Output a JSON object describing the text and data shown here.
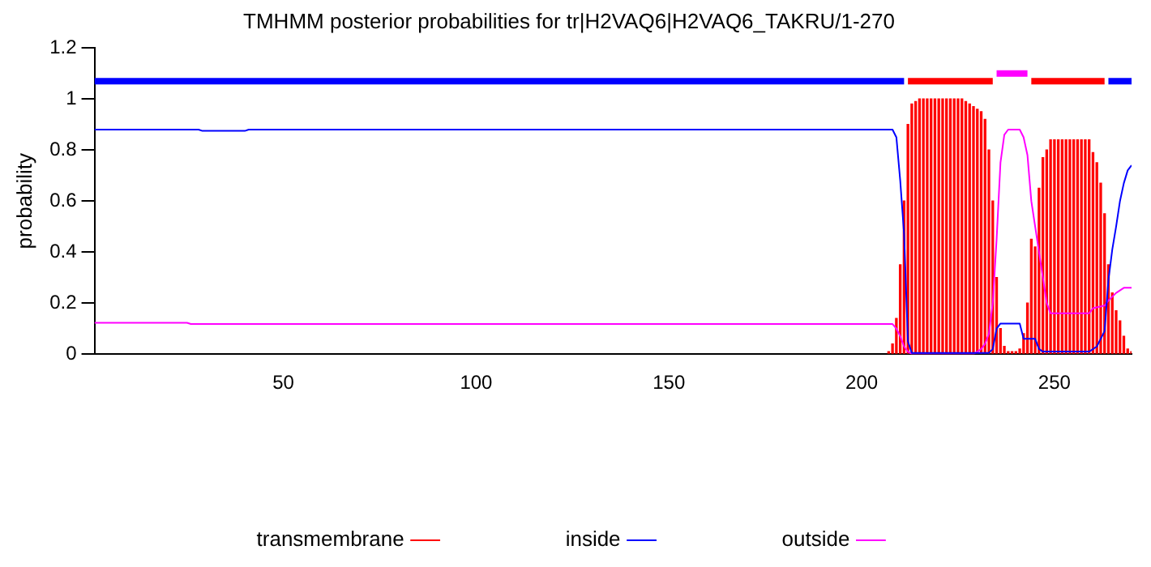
{
  "chart_data": {
    "type": "line",
    "title": "TMHMM posterior probabilities for tr|H2VAQ6|H2VAQ6_TAKRU/1-270",
    "ylabel": "probability",
    "xlim": [
      1,
      270
    ],
    "xticks": [
      50,
      100,
      150,
      200,
      250
    ],
    "ylim": [
      0,
      1.2
    ],
    "yticks": [
      0,
      0.2,
      0.4,
      0.6,
      0.8,
      1,
      1.2
    ],
    "grid": false,
    "legend": "bottom",
    "marker": "none",
    "series": [
      {
        "name": "transmembrane",
        "type": "bar",
        "color": "#ff0000",
        "x": [
          207,
          208,
          209,
          210,
          211,
          212,
          213,
          214,
          215,
          216,
          217,
          218,
          219,
          220,
          221,
          222,
          223,
          224,
          225,
          226,
          227,
          228,
          229,
          230,
          231,
          232,
          233,
          234,
          235,
          236,
          237,
          238,
          239,
          240,
          241,
          242,
          243,
          244,
          245,
          246,
          247,
          248,
          249,
          250,
          251,
          252,
          253,
          254,
          255,
          256,
          257,
          258,
          259,
          260,
          261,
          262,
          263,
          264,
          265,
          266,
          267,
          268,
          269,
          270
        ],
        "values": [
          0.01,
          0.04,
          0.14,
          0.35,
          0.6,
          0.9,
          0.98,
          0.99,
          1,
          1,
          1,
          1,
          1,
          1,
          1,
          1,
          1,
          1,
          1,
          1,
          0.99,
          0.98,
          0.97,
          0.96,
          0.95,
          0.92,
          0.8,
          0.6,
          0.3,
          0.1,
          0.03,
          0.01,
          0.01,
          0.01,
          0.02,
          0.08,
          0.2,
          0.45,
          0.42,
          0.65,
          0.77,
          0.8,
          0.84,
          0.84,
          0.84,
          0.84,
          0.84,
          0.84,
          0.84,
          0.84,
          0.84,
          0.84,
          0.84,
          0.79,
          0.75,
          0.67,
          0.55,
          0.35,
          0.24,
          0.17,
          0.13,
          0.07,
          0.02,
          0.01
        ]
      },
      {
        "name": "inside",
        "type": "line",
        "color": "#0000ff",
        "x": [
          1,
          28,
          29,
          40,
          41,
          207,
          208,
          209,
          210,
          211,
          212,
          213,
          233,
          234,
          235,
          236,
          241,
          242,
          245,
          246,
          247,
          259,
          261,
          263,
          264,
          265,
          266,
          267,
          268,
          269,
          270
        ],
        "values": [
          0.88,
          0.88,
          0.875,
          0.875,
          0.88,
          0.88,
          0.88,
          0.85,
          0.68,
          0.47,
          0.05,
          0.005,
          0.005,
          0.02,
          0.1,
          0.12,
          0.12,
          0.06,
          0.06,
          0.02,
          0.01,
          0.01,
          0.03,
          0.09,
          0.29,
          0.41,
          0.5,
          0.6,
          0.67,
          0.72,
          0.74
        ]
      },
      {
        "name": "outside",
        "type": "line",
        "color": "#ff00ff",
        "x": [
          1,
          25,
          26,
          208,
          209,
          210,
          211,
          212,
          213,
          229,
          230,
          231,
          232,
          233,
          234,
          235,
          236,
          237,
          238,
          241,
          242,
          243,
          244,
          245,
          246,
          247,
          248,
          249,
          259,
          260,
          263,
          264,
          266,
          268,
          270
        ],
        "values": [
          0.123,
          0.123,
          0.118,
          0.118,
          0.1,
          0.07,
          0.03,
          0.01,
          0,
          0,
          0.01,
          0.02,
          0.04,
          0.08,
          0.2,
          0.45,
          0.75,
          0.86,
          0.88,
          0.88,
          0.85,
          0.78,
          0.6,
          0.5,
          0.4,
          0.3,
          0.2,
          0.16,
          0.16,
          0.18,
          0.19,
          0.21,
          0.24,
          0.26,
          0.26
        ]
      },
      {
        "color": "#0000ff",
        "x": [
          1,
          211
        ],
        "values": [
          1.07,
          1.07
        ]
      },
      {
        "color": "#ff0000",
        "x": [
          212,
          234
        ],
        "values": [
          1.07,
          1.07
        ]
      },
      {
        "color": "#ff00ff",
        "x": [
          235,
          243
        ],
        "values": [
          1.1,
          1.1
        ]
      },
      {
        "color": "#ff0000",
        "x": [
          244,
          263
        ],
        "values": [
          1.07,
          1.07
        ]
      },
      {
        "color": "#0000ff",
        "x": [
          264,
          270
        ],
        "values": [
          1.07,
          1.07
        ]
      }
    ]
  }
}
